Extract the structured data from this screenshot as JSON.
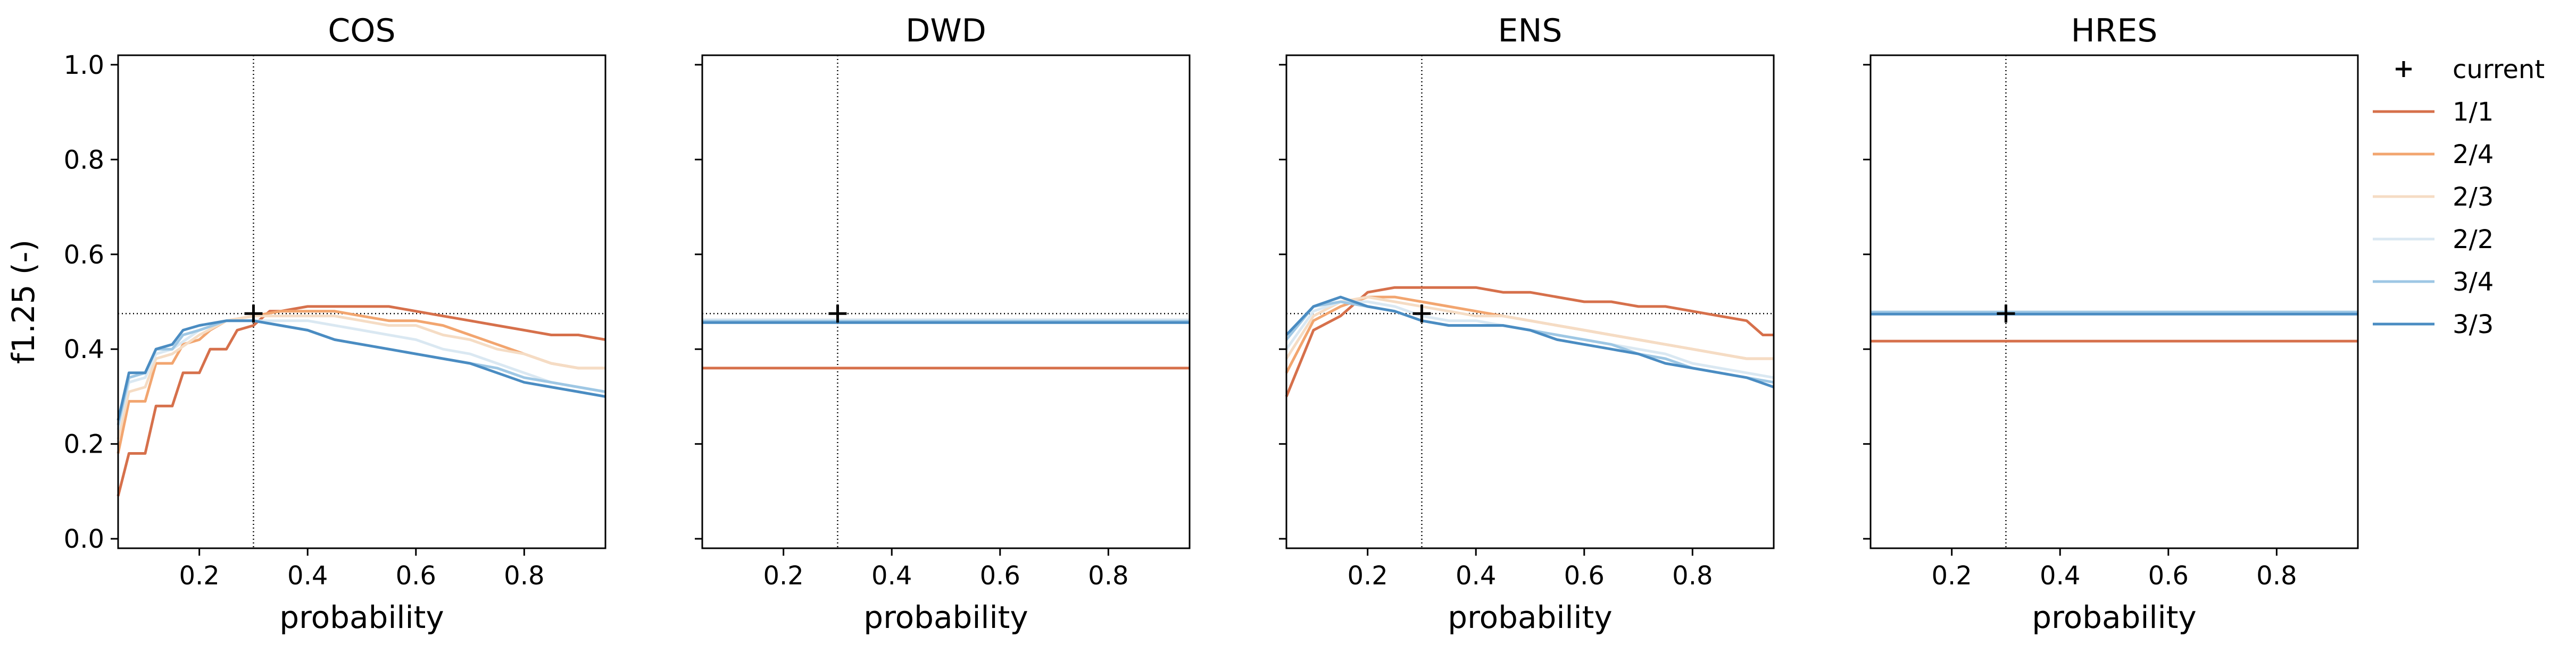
{
  "chart_data": {
    "type": "line",
    "ylabel": "f1.25 (-)",
    "xlabel": "probability",
    "xlim": [
      0.05,
      0.95
    ],
    "ylim": [
      -0.02,
      1.02
    ],
    "xticks": [
      "0.2",
      "0.4",
      "0.6",
      "0.8"
    ],
    "xtick_values": [
      0.2,
      0.4,
      0.6,
      0.8
    ],
    "yticks": [
      "0.0",
      "0.2",
      "0.4",
      "0.6",
      "0.8",
      "1.0"
    ],
    "ytick_values": [
      0.0,
      0.2,
      0.4,
      0.6,
      0.8,
      1.0
    ],
    "legend": {
      "placement": "right, outside",
      "marker_label": "current",
      "entries": [
        "1/1",
        "2/4",
        "2/3",
        "2/2",
        "3/4",
        "3/3"
      ]
    },
    "colors": {
      "1/1": "#d6704b",
      "2/4": "#f2a56f",
      "2/3": "#f5dcc4",
      "2/2": "#dae8f2",
      "3/4": "#9ec7e4",
      "3/3": "#4a8cc2",
      "reference": "#000000"
    },
    "current": {
      "x": 0.3,
      "y": 0.475
    },
    "panels": [
      {
        "title": "COS",
        "series": [
          {
            "name": "1/1",
            "x": [
              0.05,
              0.07,
              0.1,
              0.12,
              0.15,
              0.17,
              0.2,
              0.22,
              0.25,
              0.27,
              0.3,
              0.33,
              0.35,
              0.4,
              0.45,
              0.5,
              0.55,
              0.6,
              0.65,
              0.7,
              0.75,
              0.8,
              0.85,
              0.9,
              0.95
            ],
            "y": [
              0.09,
              0.18,
              0.18,
              0.28,
              0.28,
              0.35,
              0.35,
              0.4,
              0.4,
              0.44,
              0.45,
              0.48,
              0.48,
              0.49,
              0.49,
              0.49,
              0.49,
              0.48,
              0.47,
              0.46,
              0.45,
              0.44,
              0.43,
              0.43,
              0.42
            ]
          },
          {
            "name": "2/4",
            "x": [
              0.05,
              0.07,
              0.1,
              0.12,
              0.15,
              0.17,
              0.2,
              0.22,
              0.25,
              0.3,
              0.35,
              0.4,
              0.45,
              0.5,
              0.55,
              0.6,
              0.65,
              0.7,
              0.75,
              0.8,
              0.85,
              0.9,
              0.95
            ],
            "y": [
              0.18,
              0.29,
              0.29,
              0.37,
              0.37,
              0.41,
              0.42,
              0.44,
              0.46,
              0.47,
              0.48,
              0.48,
              0.48,
              0.47,
              0.46,
              0.46,
              0.45,
              0.43,
              0.41,
              0.39,
              0.37,
              0.36,
              0.36
            ]
          },
          {
            "name": "2/3",
            "x": [
              0.05,
              0.07,
              0.1,
              0.12,
              0.15,
              0.2,
              0.25,
              0.3,
              0.35,
              0.4,
              0.45,
              0.5,
              0.55,
              0.6,
              0.65,
              0.7,
              0.75,
              0.8,
              0.85,
              0.9,
              0.95
            ],
            "y": [
              0.21,
              0.31,
              0.32,
              0.38,
              0.39,
              0.43,
              0.46,
              0.47,
              0.47,
              0.47,
              0.47,
              0.46,
              0.45,
              0.45,
              0.43,
              0.42,
              0.4,
              0.39,
              0.37,
              0.36,
              0.36
            ]
          },
          {
            "name": "2/2",
            "x": [
              0.05,
              0.07,
              0.1,
              0.12,
              0.15,
              0.2,
              0.25,
              0.3,
              0.35,
              0.4,
              0.45,
              0.5,
              0.55,
              0.6,
              0.65,
              0.7,
              0.75,
              0.8,
              0.85,
              0.9,
              0.95
            ],
            "y": [
              0.23,
              0.33,
              0.34,
              0.39,
              0.4,
              0.44,
              0.46,
              0.46,
              0.46,
              0.46,
              0.45,
              0.44,
              0.43,
              0.42,
              0.4,
              0.39,
              0.37,
              0.35,
              0.33,
              0.32,
              0.31
            ]
          },
          {
            "name": "3/4",
            "x": [
              0.05,
              0.07,
              0.1,
              0.12,
              0.15,
              0.17,
              0.2,
              0.25,
              0.3,
              0.35,
              0.4,
              0.45,
              0.5,
              0.55,
              0.6,
              0.65,
              0.7,
              0.75,
              0.8,
              0.85,
              0.9,
              0.95
            ],
            "y": [
              0.24,
              0.34,
              0.35,
              0.4,
              0.4,
              0.43,
              0.44,
              0.46,
              0.46,
              0.45,
              0.44,
              0.42,
              0.41,
              0.4,
              0.39,
              0.38,
              0.37,
              0.36,
              0.34,
              0.33,
              0.32,
              0.31
            ]
          },
          {
            "name": "3/3",
            "x": [
              0.05,
              0.07,
              0.1,
              0.12,
              0.15,
              0.17,
              0.2,
              0.25,
              0.3,
              0.35,
              0.4,
              0.45,
              0.5,
              0.55,
              0.6,
              0.65,
              0.7,
              0.75,
              0.8,
              0.85,
              0.9,
              0.95
            ],
            "y": [
              0.25,
              0.35,
              0.35,
              0.4,
              0.41,
              0.44,
              0.45,
              0.46,
              0.46,
              0.45,
              0.44,
              0.42,
              0.41,
              0.4,
              0.39,
              0.38,
              0.37,
              0.35,
              0.33,
              0.32,
              0.31,
              0.3
            ]
          }
        ]
      },
      {
        "title": "DWD",
        "series": [
          {
            "name": "1/1",
            "x": [
              0.05,
              0.95
            ],
            "y": [
              0.36,
              0.36
            ]
          },
          {
            "name": "2/4",
            "x": [
              0.05,
              0.95
            ],
            "y": [
              0.458,
              0.458
            ]
          },
          {
            "name": "2/3",
            "x": [
              0.05,
              0.95
            ],
            "y": [
              0.46,
              0.46
            ]
          },
          {
            "name": "2/2",
            "x": [
              0.05,
              0.95
            ],
            "y": [
              0.462,
              0.462
            ]
          },
          {
            "name": "3/4",
            "x": [
              0.05,
              0.95
            ],
            "y": [
              0.459,
              0.459
            ]
          },
          {
            "name": "3/3",
            "x": [
              0.05,
              0.95
            ],
            "y": [
              0.456,
              0.456
            ]
          }
        ]
      },
      {
        "title": "ENS",
        "series": [
          {
            "name": "1/1",
            "x": [
              0.05,
              0.1,
              0.15,
              0.2,
              0.25,
              0.3,
              0.35,
              0.4,
              0.45,
              0.5,
              0.55,
              0.6,
              0.65,
              0.7,
              0.75,
              0.8,
              0.85,
              0.9,
              0.93,
              0.95
            ],
            "y": [
              0.3,
              0.44,
              0.47,
              0.52,
              0.53,
              0.53,
              0.53,
              0.53,
              0.52,
              0.52,
              0.51,
              0.5,
              0.5,
              0.49,
              0.49,
              0.48,
              0.47,
              0.46,
              0.43,
              0.43
            ]
          },
          {
            "name": "2/4",
            "x": [
              0.05,
              0.1,
              0.15,
              0.2,
              0.25,
              0.3,
              0.35,
              0.4,
              0.45,
              0.5,
              0.55,
              0.6,
              0.65,
              0.7,
              0.75,
              0.8,
              0.85,
              0.9,
              0.95
            ],
            "y": [
              0.35,
              0.46,
              0.49,
              0.51,
              0.51,
              0.5,
              0.49,
              0.48,
              0.47,
              0.46,
              0.45,
              0.44,
              0.43,
              0.42,
              0.41,
              0.4,
              0.39,
              0.38,
              0.38
            ]
          },
          {
            "name": "2/3",
            "x": [
              0.05,
              0.1,
              0.15,
              0.2,
              0.25,
              0.3,
              0.35,
              0.4,
              0.45,
              0.5,
              0.55,
              0.6,
              0.65,
              0.7,
              0.75,
              0.8,
              0.85,
              0.9,
              0.95
            ],
            "y": [
              0.38,
              0.47,
              0.5,
              0.51,
              0.5,
              0.49,
              0.48,
              0.47,
              0.47,
              0.46,
              0.45,
              0.44,
              0.43,
              0.42,
              0.41,
              0.4,
              0.39,
              0.38,
              0.38
            ]
          },
          {
            "name": "2/2",
            "x": [
              0.05,
              0.1,
              0.15,
              0.2,
              0.25,
              0.3,
              0.35,
              0.4,
              0.45,
              0.5,
              0.55,
              0.6,
              0.65,
              0.7,
              0.75,
              0.8,
              0.85,
              0.9,
              0.95
            ],
            "y": [
              0.4,
              0.48,
              0.5,
              0.5,
              0.49,
              0.47,
              0.46,
              0.46,
              0.45,
              0.44,
              0.43,
              0.42,
              0.41,
              0.4,
              0.39,
              0.37,
              0.36,
              0.35,
              0.34
            ]
          },
          {
            "name": "3/4",
            "x": [
              0.05,
              0.1,
              0.15,
              0.2,
              0.25,
              0.3,
              0.35,
              0.4,
              0.45,
              0.5,
              0.55,
              0.6,
              0.65,
              0.7,
              0.75,
              0.8,
              0.85,
              0.9,
              0.95
            ],
            "y": [
              0.42,
              0.49,
              0.5,
              0.49,
              0.48,
              0.46,
              0.45,
              0.45,
              0.45,
              0.44,
              0.43,
              0.42,
              0.41,
              0.39,
              0.38,
              0.36,
              0.35,
              0.34,
              0.33
            ]
          },
          {
            "name": "3/3",
            "x": [
              0.05,
              0.1,
              0.15,
              0.2,
              0.25,
              0.3,
              0.35,
              0.4,
              0.45,
              0.5,
              0.55,
              0.6,
              0.65,
              0.7,
              0.75,
              0.8,
              0.85,
              0.9,
              0.95
            ],
            "y": [
              0.43,
              0.49,
              0.51,
              0.49,
              0.48,
              0.46,
              0.45,
              0.45,
              0.45,
              0.44,
              0.42,
              0.41,
              0.4,
              0.39,
              0.37,
              0.36,
              0.35,
              0.34,
              0.32
            ]
          }
        ]
      },
      {
        "title": "HRES",
        "series": [
          {
            "name": "1/1",
            "x": [
              0.05,
              0.95
            ],
            "y": [
              0.417,
              0.417
            ]
          },
          {
            "name": "2/4",
            "x": [
              0.05,
              0.95
            ],
            "y": [
              0.476,
              0.476
            ]
          },
          {
            "name": "2/3",
            "x": [
              0.05,
              0.95
            ],
            "y": [
              0.477,
              0.477
            ]
          },
          {
            "name": "2/2",
            "x": [
              0.05,
              0.95
            ],
            "y": [
              0.479,
              0.479
            ]
          },
          {
            "name": "3/4",
            "x": [
              0.05,
              0.95
            ],
            "y": [
              0.478,
              0.478
            ]
          },
          {
            "name": "3/3",
            "x": [
              0.05,
              0.95
            ],
            "y": [
              0.474,
              0.474
            ]
          }
        ]
      }
    ]
  }
}
